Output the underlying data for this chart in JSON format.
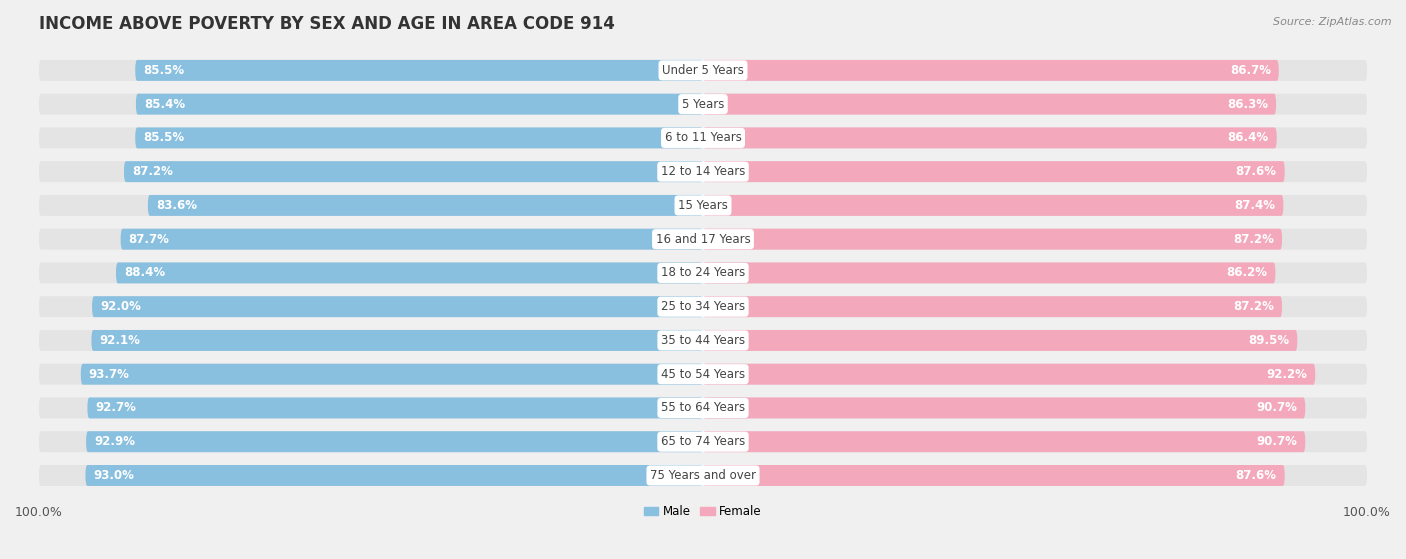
{
  "title": "INCOME ABOVE POVERTY BY SEX AND AGE IN AREA CODE 914",
  "source": "Source: ZipAtlas.com",
  "categories": [
    "Under 5 Years",
    "5 Years",
    "6 to 11 Years",
    "12 to 14 Years",
    "15 Years",
    "16 and 17 Years",
    "18 to 24 Years",
    "25 to 34 Years",
    "35 to 44 Years",
    "45 to 54 Years",
    "55 to 64 Years",
    "65 to 74 Years",
    "75 Years and over"
  ],
  "male_values": [
    85.5,
    85.4,
    85.5,
    87.2,
    83.6,
    87.7,
    88.4,
    92.0,
    92.1,
    93.7,
    92.7,
    92.9,
    93.0
  ],
  "female_values": [
    86.7,
    86.3,
    86.4,
    87.6,
    87.4,
    87.2,
    86.2,
    87.2,
    89.5,
    92.2,
    90.7,
    90.7,
    87.6
  ],
  "male_color": "#89bfdf",
  "female_color": "#f4a8bc",
  "male_label": "Male",
  "female_label": "Female",
  "background_color": "#f0f0f0",
  "row_bg_color": "#e4e4e4",
  "title_fontsize": 12,
  "label_fontsize": 8.5,
  "tick_fontsize": 9,
  "source_fontsize": 8,
  "bar_height": 0.62,
  "axis_max": 100.0
}
